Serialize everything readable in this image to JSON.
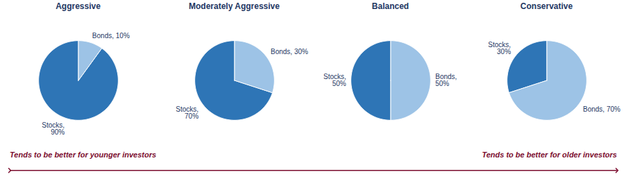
{
  "chart_data": [
    {
      "type": "pie",
      "title": "Aggressive",
      "values": [
        90,
        10
      ],
      "value_labels": [
        "Stocks,\n90%",
        "Bonds, 10%"
      ],
      "colors": [
        "#2E75B6",
        "#9DC3E6"
      ],
      "data_labels": true
    },
    {
      "type": "pie",
      "title": "Moderately Aggressive",
      "values": [
        70,
        30
      ],
      "value_labels": [
        "Stocks,\n70%",
        "Bonds, 30%"
      ],
      "colors": [
        "#2E75B6",
        "#9DC3E6"
      ],
      "data_labels": true
    },
    {
      "type": "pie",
      "title": "Balanced",
      "values": [
        50,
        50
      ],
      "value_labels": [
        "Stocks,\n50%",
        "Bonds,\n50%"
      ],
      "colors": [
        "#2E75B6",
        "#9DC3E6"
      ],
      "data_labels": true
    },
    {
      "type": "pie",
      "title": "Conservative",
      "values": [
        30,
        70
      ],
      "value_labels": [
        "Stocks,\n30%",
        "Bonds, 70%"
      ],
      "colors": [
        "#2E75B6",
        "#9DC3E6"
      ],
      "data_labels": true
    }
  ],
  "annotations": [
    "Tends to be better for younger investors",
    "Tends to be better for older investors"
  ]
}
